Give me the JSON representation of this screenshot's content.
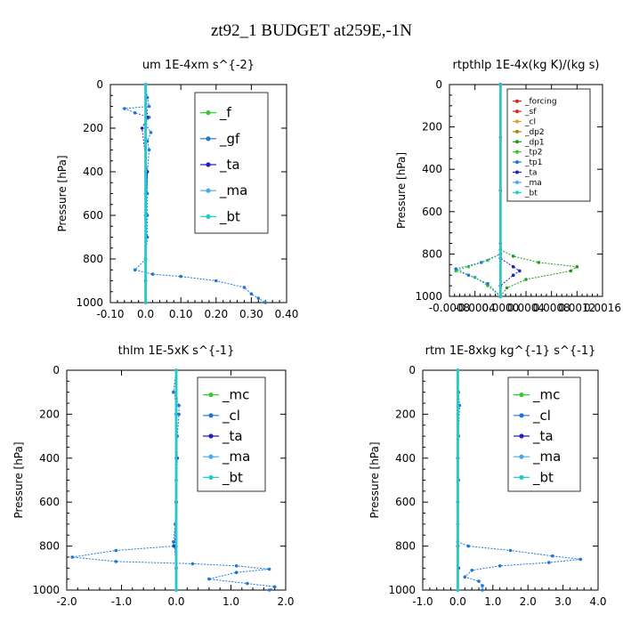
{
  "figure_title": "zt92_1  BUDGET at259E,-1N",
  "chart_data": [
    {
      "type": "line",
      "title": "um   1E-4xm  s^{-2}",
      "ylabel": "Pressure [hPa]",
      "xlim": [
        -0.1,
        0.4
      ],
      "ylim": [
        1000,
        0
      ],
      "xticks": [
        "-0.10",
        "0.0",
        "0.10",
        "0.20",
        "0.30",
        "0.40"
      ],
      "xtick_values": [
        -0.1,
        0.0,
        0.1,
        0.2,
        0.3,
        0.4
      ],
      "yticks": [
        "0",
        "200",
        "400",
        "600",
        "800",
        "1000"
      ],
      "ytick_values": [
        0,
        200,
        400,
        600,
        800,
        1000
      ],
      "legend": "top-right",
      "series": [
        {
          "name": "_f",
          "color": "#33cc33",
          "values": [
            [
              0,
              0
            ],
            [
              0,
              200
            ],
            [
              0,
              400
            ],
            [
              0,
              600
            ],
            [
              0,
              800
            ],
            [
              0,
              1000
            ]
          ]
        },
        {
          "name": "_gf",
          "color": "#1f77d4",
          "values": [
            [
              0,
              0
            ],
            [
              0.005,
              60
            ],
            [
              0.01,
              100
            ],
            [
              -0.06,
              110
            ],
            [
              -0.03,
              130
            ],
            [
              0.01,
              150
            ],
            [
              0.0,
              180
            ],
            [
              0.015,
              220
            ],
            [
              0.005,
              260
            ],
            [
              0.01,
              300
            ],
            [
              0.005,
              400
            ],
            [
              0.005,
              500
            ],
            [
              0.005,
              600
            ],
            [
              0.005,
              700
            ],
            [
              0.0,
              800
            ],
            [
              -0.03,
              850
            ],
            [
              0.02,
              870
            ],
            [
              0.1,
              880
            ],
            [
              0.2,
              900
            ],
            [
              0.28,
              930
            ],
            [
              0.3,
              960
            ],
            [
              0.32,
              980
            ],
            [
              0.34,
              1000
            ]
          ]
        },
        {
          "name": "_ta",
          "color": "#2222bb",
          "values": [
            [
              0,
              0
            ],
            [
              0.005,
              150
            ],
            [
              -0.01,
              200
            ],
            [
              0.005,
              400
            ],
            [
              0,
              600
            ],
            [
              0,
              800
            ],
            [
              0,
              900
            ],
            [
              0,
              1000
            ]
          ]
        },
        {
          "name": "_ma",
          "color": "#44aaee",
          "values": [
            [
              0,
              0
            ],
            [
              0,
              500
            ],
            [
              0,
              1000
            ]
          ]
        },
        {
          "name": "_bt",
          "color": "#22cccc",
          "values": [
            [
              0,
              0
            ],
            [
              0,
              200
            ],
            [
              0,
              400
            ],
            [
              0,
              600
            ],
            [
              0,
              800
            ],
            [
              0,
              1000
            ]
          ]
        }
      ]
    },
    {
      "type": "line",
      "title": "rtpthlp   1E-4x(kg K)/(kg s)",
      "ylabel": "Pressure [hPa]",
      "xlim": [
        -0.0008,
        0.0016
      ],
      "ylim": [
        1000,
        0
      ],
      "xticks": [
        "-0.0008",
        "-0.0004",
        "0.0000",
        "0.0004",
        "0.0008",
        "0.0012",
        "0.0016"
      ],
      "xtick_values": [
        -0.0008,
        -0.0004,
        0.0,
        0.0004,
        0.0008,
        0.0012,
        0.0016
      ],
      "yticks": [
        "0",
        "200",
        "400",
        "600",
        "800",
        "1000"
      ],
      "ytick_values": [
        0,
        200,
        400,
        600,
        800,
        1000
      ],
      "legend": "top-right",
      "series": [
        {
          "name": "_forcing",
          "color": "#dd2222",
          "values": [
            [
              0,
              0
            ],
            [
              0,
              250
            ],
            [
              0,
              500
            ],
            [
              0,
              750
            ],
            [
              0,
              1000
            ]
          ]
        },
        {
          "name": "_sf",
          "color": "#dd2222",
          "values": [
            [
              0,
              0
            ],
            [
              0,
              500
            ],
            [
              0,
              1000
            ]
          ]
        },
        {
          "name": "_cl",
          "color": "#ee9922",
          "values": [
            [
              0,
              0
            ],
            [
              0,
              1000
            ]
          ]
        },
        {
          "name": "_dp2",
          "color": "#aa8800",
          "values": [
            [
              0,
              0
            ],
            [
              0,
              1000
            ]
          ]
        },
        {
          "name": "_dp1",
          "color": "#229922",
          "values": [
            [
              0,
              0
            ],
            [
              0,
              780
            ],
            [
              0.0002,
              810
            ],
            [
              0.0006,
              840
            ],
            [
              0.0012,
              860
            ],
            [
              0.0011,
              880
            ],
            [
              0.0004,
              920
            ],
            [
              0.0001,
              960
            ],
            [
              0,
              1000
            ]
          ]
        },
        {
          "name": "_tp2",
          "color": "#33cc33",
          "values": [
            [
              0,
              0
            ],
            [
              0,
              800
            ],
            [
              -0.0002,
              830
            ],
            [
              -0.0005,
              860
            ],
            [
              -0.0007,
              880
            ],
            [
              -0.0004,
              910
            ],
            [
              -0.0002,
              950
            ],
            [
              0,
              1000
            ]
          ]
        },
        {
          "name": "_tp1",
          "color": "#1f77d4",
          "values": [
            [
              0,
              0
            ],
            [
              0,
              800
            ],
            [
              -0.0003,
              840
            ],
            [
              -0.0007,
              870
            ],
            [
              -0.0005,
              900
            ],
            [
              -0.0002,
              940
            ],
            [
              0,
              1000
            ]
          ]
        },
        {
          "name": "_ta",
          "color": "#2222bb",
          "values": [
            [
              0,
              0
            ],
            [
              0,
              820
            ],
            [
              0.0002,
              860
            ],
            [
              0.0003,
              880
            ],
            [
              0.0002,
              900
            ],
            [
              0,
              950
            ],
            [
              0,
              1000
            ]
          ]
        },
        {
          "name": "_ma",
          "color": "#44aaee",
          "values": [
            [
              0,
              0
            ],
            [
              0,
              1000
            ]
          ]
        },
        {
          "name": "_bt",
          "color": "#22cccc",
          "values": [
            [
              0,
              0
            ],
            [
              0,
              1000
            ]
          ]
        }
      ]
    },
    {
      "type": "line",
      "title": "thlm   1E-5xK  s^{-1}",
      "ylabel": "Pressure [hPa]",
      "xlim": [
        -2.0,
        2.0
      ],
      "ylim": [
        1000,
        0
      ],
      "xticks": [
        "-2.0",
        "-1.0",
        "0.0",
        "1.0",
        "2.0"
      ],
      "xtick_values": [
        -2.0,
        -1.0,
        0.0,
        1.0,
        2.0
      ],
      "yticks": [
        "0",
        "200",
        "400",
        "600",
        "800",
        "1000"
      ],
      "ytick_values": [
        0,
        200,
        400,
        600,
        800,
        1000
      ],
      "legend": "top-right",
      "series": [
        {
          "name": "_mc",
          "color": "#33cc33",
          "values": [
            [
              0,
              0
            ],
            [
              0,
              200
            ],
            [
              0,
              400
            ],
            [
              0,
              600
            ],
            [
              0,
              800
            ],
            [
              0,
              1000
            ]
          ]
        },
        {
          "name": "_cl",
          "color": "#1f77d4",
          "values": [
            [
              0,
              0
            ],
            [
              -0.05,
              100
            ],
            [
              0.0,
              130
            ],
            [
              0.05,
              160
            ],
            [
              0.05,
              200
            ],
            [
              0.02,
              300
            ],
            [
              0.0,
              400
            ],
            [
              0.0,
              500
            ],
            [
              0.0,
              600
            ],
            [
              -0.02,
              700
            ],
            [
              -0.05,
              780
            ],
            [
              -0.05,
              800
            ],
            [
              -1.1,
              820
            ],
            [
              -1.9,
              850
            ],
            [
              -1.1,
              870
            ],
            [
              0.3,
              880
            ],
            [
              1.1,
              890
            ],
            [
              1.7,
              905
            ],
            [
              1.1,
              920
            ],
            [
              0.6,
              950
            ],
            [
              1.3,
              970
            ],
            [
              1.8,
              985
            ],
            [
              1.7,
              1000
            ]
          ]
        },
        {
          "name": "_ta",
          "color": "#2222bb",
          "values": [
            [
              0,
              0
            ],
            [
              0,
              200
            ],
            [
              0.02,
              400
            ],
            [
              0,
              600
            ],
            [
              -0.03,
              800
            ],
            [
              0,
              900
            ],
            [
              0,
              1000
            ]
          ]
        },
        {
          "name": "_ma",
          "color": "#44aaee",
          "values": [
            [
              0,
              0
            ],
            [
              0,
              500
            ],
            [
              0,
              1000
            ]
          ]
        },
        {
          "name": "_bt",
          "color": "#22cccc",
          "values": [
            [
              0,
              0
            ],
            [
              0,
              1000
            ]
          ]
        }
      ]
    },
    {
      "type": "line",
      "title": "rtm   1E-8xkg  kg^{-1}  s^{-1}",
      "ylabel": "Pressure [hPa]",
      "xlim": [
        -1.0,
        4.0
      ],
      "ylim": [
        1000,
        0
      ],
      "xticks": [
        "-1.0",
        "0.0",
        "1.0",
        "2.0",
        "3.0",
        "4.0"
      ],
      "xtick_values": [
        -1.0,
        0.0,
        1.0,
        2.0,
        3.0,
        4.0
      ],
      "yticks": [
        "0",
        "200",
        "400",
        "600",
        "800",
        "1000"
      ],
      "ytick_values": [
        0,
        200,
        400,
        600,
        800,
        1000
      ],
      "legend": "top-right",
      "series": [
        {
          "name": "_mc",
          "color": "#33cc33",
          "values": [
            [
              0,
              0
            ],
            [
              0,
              200
            ],
            [
              0,
              400
            ],
            [
              0,
              600
            ],
            [
              0,
              800
            ],
            [
              0,
              1000
            ]
          ]
        },
        {
          "name": "_cl",
          "color": "#1f77d4",
          "values": [
            [
              0,
              0
            ],
            [
              0.02,
              100
            ],
            [
              0.05,
              160
            ],
            [
              0.02,
              300
            ],
            [
              0.0,
              400
            ],
            [
              0.02,
              500
            ],
            [
              0.0,
              600
            ],
            [
              0.0,
              700
            ],
            [
              0.0,
              780
            ],
            [
              0.3,
              800
            ],
            [
              1.5,
              820
            ],
            [
              2.7,
              845
            ],
            [
              3.5,
              860
            ],
            [
              2.6,
              875
            ],
            [
              1.2,
              890
            ],
            [
              0.4,
              910
            ],
            [
              0.2,
              940
            ],
            [
              0.6,
              960
            ],
            [
              0.7,
              980
            ],
            [
              0.7,
              1000
            ]
          ]
        },
        {
          "name": "_ta",
          "color": "#2222bb",
          "values": [
            [
              0,
              0
            ],
            [
              0,
              400
            ],
            [
              0,
              800
            ],
            [
              0.02,
              900
            ],
            [
              0,
              1000
            ]
          ]
        },
        {
          "name": "_ma",
          "color": "#44aaee",
          "values": [
            [
              0,
              0
            ],
            [
              0,
              1000
            ]
          ]
        },
        {
          "name": "_bt",
          "color": "#22cccc",
          "values": [
            [
              0,
              0
            ],
            [
              0,
              1000
            ]
          ]
        }
      ]
    }
  ]
}
